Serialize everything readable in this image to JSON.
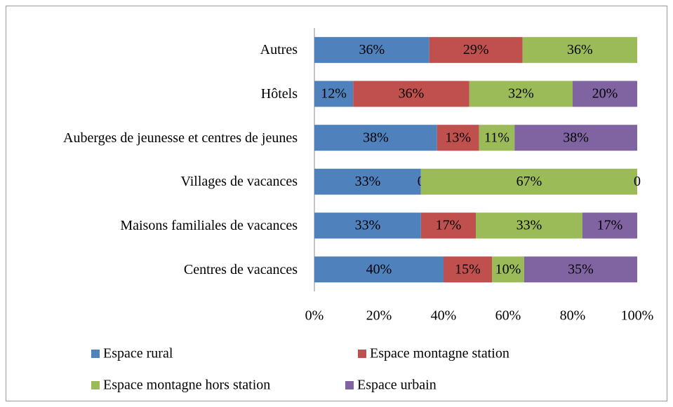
{
  "chart_data": {
    "type": "stacked-bar-horizontal",
    "categories": [
      "Autres",
      "Hôtels",
      "Auberges de jeunesse et centres de jeunes",
      "Villages de vacances",
      "Maisons familiales de vacances",
      "Centres de vacances"
    ],
    "series": [
      {
        "name": "Espace rural",
        "color": "#4f81bd",
        "values": [
          35.6,
          12,
          38,
          33,
          33,
          40
        ],
        "value_labels": [
          "36%",
          "12%",
          "38%",
          "33%",
          "33%",
          "40%"
        ]
      },
      {
        "name": "Espace montagne station",
        "color": "#c0504d",
        "values": [
          28.9,
          36,
          13,
          0,
          17,
          15
        ],
        "value_labels": [
          "29%",
          "36%",
          "13%",
          "0",
          "17%",
          "15%"
        ]
      },
      {
        "name": "Espace montagne hors station",
        "color": "#9bbb59",
        "values": [
          35.5,
          32,
          11,
          67,
          33,
          10
        ],
        "value_labels": [
          "36%",
          "32%",
          "11%",
          "67%",
          "33%",
          "10%"
        ]
      },
      {
        "name": "Espace urbain",
        "color": "#8064a2",
        "values": [
          null,
          20,
          38,
          0,
          17,
          35
        ],
        "value_labels": [
          null,
          "20%",
          "38%",
          "0",
          "17%",
          "35%"
        ]
      }
    ],
    "xlim": [
      0,
      100
    ],
    "xticks": [
      {
        "value": 0,
        "label": "0%"
      },
      {
        "value": 20,
        "label": "20%"
      },
      {
        "value": 40,
        "label": "40%"
      },
      {
        "value": 60,
        "label": "60%"
      },
      {
        "value": 80,
        "label": "80%"
      },
      {
        "value": 100,
        "label": "100%"
      }
    ]
  }
}
